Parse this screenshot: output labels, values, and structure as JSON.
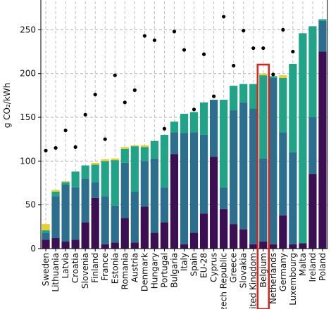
{
  "chart_data": {
    "type": "bar",
    "stacked": true,
    "ylabel": "g CO₂/kWh",
    "ylim": [
      0,
      288
    ],
    "yticks": [
      0,
      50,
      100,
      150,
      200,
      250
    ],
    "grid": true,
    "highlighted_category": "Belgium",
    "highlight_color": "#e0201b",
    "categories": [
      "Sweden",
      "Lithuania",
      "Latvia",
      "Croatia",
      "Slovenia",
      "Finland",
      "France",
      "Estonia",
      "Romania",
      "Austria",
      "Denmark",
      "Hungary",
      "Portugal",
      "Bulgaria",
      "Italy",
      "Spain",
      "EU-28",
      "Cyprus",
      "Czech Republic",
      "Greece",
      "Slovakia",
      "United Kingdom",
      "Belgium",
      "Netherlands",
      "Germany",
      "Luxembourg",
      "Malta",
      "Ireland",
      "Poland"
    ],
    "series": [
      {
        "color": "#3b0f52",
        "values": [
          10,
          12,
          8,
          10,
          30,
          58,
          5,
          7,
          35,
          7,
          48,
          18,
          30,
          108,
          5,
          18,
          40,
          105,
          45,
          28,
          22,
          5,
          8,
          5,
          38,
          5,
          6,
          85,
          225
        ]
      },
      {
        "color": "#2c6e8e",
        "values": [
          8,
          48,
          65,
          60,
          50,
          18,
          55,
          42,
          63,
          58,
          52,
          85,
          40,
          25,
          127,
          115,
          90,
          65,
          25,
          130,
          145,
          155,
          95,
          190,
          95,
          105,
          0,
          65,
          35
        ]
      },
      {
        "color": "#20a386",
        "values": [
          3,
          5,
          3,
          18,
          15,
          20,
          40,
          52,
          16,
          52,
          16,
          20,
          60,
          12,
          22,
          23,
          37,
          0,
          100,
          28,
          21,
          28,
          95,
          2,
          62,
          101,
          240,
          104,
          2
        ]
      },
      {
        "color": "#e9cf2a",
        "values": [
          7,
          2,
          1,
          0,
          0,
          2,
          2,
          2,
          2,
          1,
          2,
          0,
          0,
          0,
          0,
          0,
          0,
          0,
          0,
          0,
          0,
          0,
          2,
          0,
          3,
          0,
          0,
          0,
          0
        ]
      }
    ],
    "scatter_values": [
      112,
      115,
      135,
      116,
      153,
      176,
      125,
      198,
      167,
      181,
      243,
      238,
      137,
      248,
      227,
      159,
      222,
      174,
      265,
      209,
      249,
      229,
      229,
      199,
      250,
      225,
      null,
      null,
      null
    ],
    "scatter_color": "#000000"
  }
}
